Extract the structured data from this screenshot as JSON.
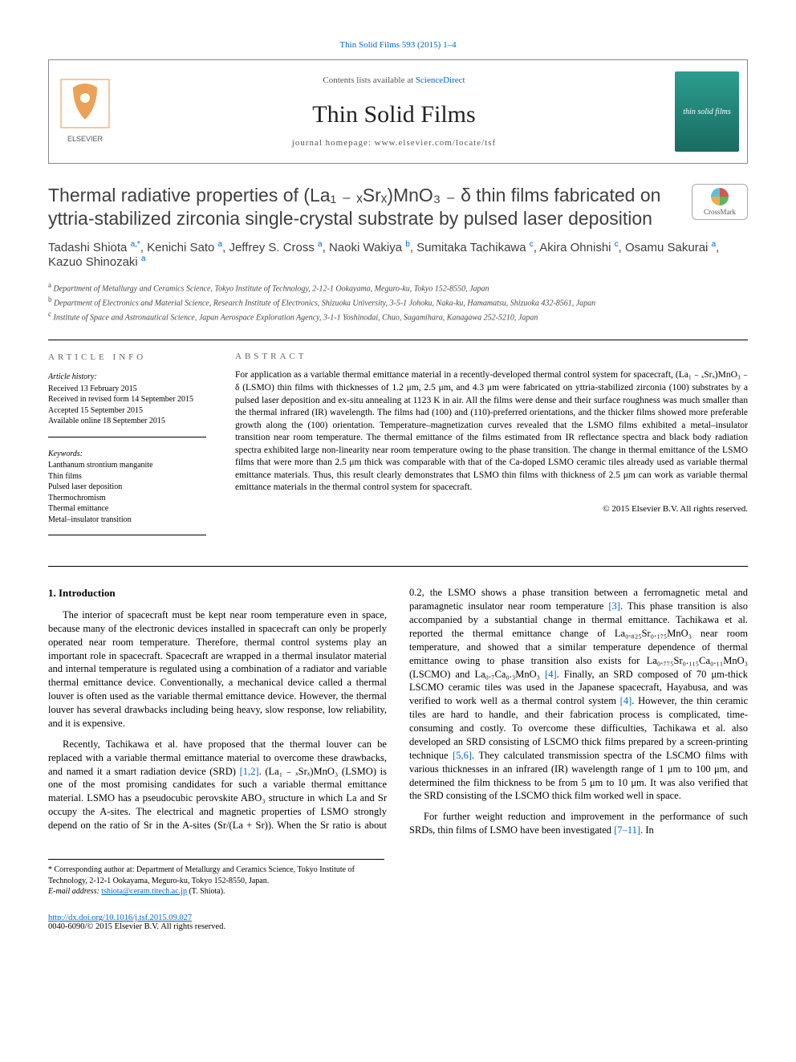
{
  "journal_ref": "Thin Solid Films 593 (2015) 1–4",
  "header": {
    "contents_prefix": "Contents lists available at ",
    "contents_link": "ScienceDirect",
    "journal_name": "Thin Solid Films",
    "homepage": "journal homepage: www.elsevier.com/locate/tsf",
    "cover_text": "thin solid films"
  },
  "title": "Thermal radiative properties of (La₁ ₋ ₓSrₓ)MnO₃ ₋ δ thin films fabricated on yttria-stabilized zirconia single-crystal substrate by pulsed laser deposition",
  "crossmark_label": "CrossMark",
  "authors_html": "Tadashi Shiota <sup>a,*</sup>, Kenichi Sato <sup>a</sup>, Jeffrey S. Cross <sup>a</sup>, Naoki Wakiya <sup>b</sup>, Sumitaka Tachikawa <sup>c</sup>, Akira Ohnishi <sup>c</sup>, Osamu Sakurai <sup>a</sup>, Kazuo Shinozaki <sup>a</sup>",
  "affiliations": [
    "a Department of Metallurgy and Ceramics Science, Tokyo Institute of Technology, 2-12-1 Ookayama, Meguro-ku, Tokyo 152-8550, Japan",
    "b Department of Electronics and Material Science, Research Institute of Electronics, Shizuoka University, 3-5-1 Johoku, Naka-ku, Hamamatsu, Shizuoka 432-8561, Japan",
    "c Institute of Space and Astronautical Science, Japan Aerospace Exploration Agency, 3-1-1 Yoshinodai, Chuo, Sagamihara, Kanagawa 252-5210, Japan"
  ],
  "article_info": {
    "heading": "ARTICLE INFO",
    "history_label": "Article history:",
    "history": [
      "Received 13 February 2015",
      "Received in revised form 14 September 2015",
      "Accepted 15 September 2015",
      "Available online 18 September 2015"
    ],
    "keywords_label": "Keywords:",
    "keywords": [
      "Lanthanum strontium manganite",
      "Thin films",
      "Pulsed laser deposition",
      "Thermochromism",
      "Thermal emittance",
      "Metal–insulator transition"
    ]
  },
  "abstract": {
    "heading": "ABSTRACT",
    "text": "For application as a variable thermal emittance material in a recently-developed thermal control system for spacecraft, (La₁ ₋ ₓSrₓ)MnO₃ ₋ δ (LSMO) thin films with thicknesses of 1.2 μm, 2.5 μm, and 4.3 μm were fabricated on yttria-stabilized zirconia (100) substrates by a pulsed laser deposition and ex-situ annealing at 1123 K in air. All the films were dense and their surface roughness was much smaller than the thermal infrared (IR) wavelength. The films had (100) and (110)-preferred orientations, and the thicker films showed more preferable growth along the (100) orientation. Temperature–magnetization curves revealed that the LSMO films exhibited a metal–insulator transition near room temperature. The thermal emittance of the films estimated from IR reflectance spectra and black body radiation spectra exhibited large non-linearity near room temperature owing to the phase transition. The change in thermal emittance of the LSMO films that were more than 2.5 μm thick was comparable with that of the Ca-doped LSMO ceramic tiles already used as variable thermal emittance materials. Thus, this result clearly demonstrates that LSMO thin films with thickness of 2.5 μm can work as variable thermal emittance materials in the thermal control system for spacecraft.",
    "copyright": "© 2015 Elsevier B.V. All rights reserved."
  },
  "body": {
    "section_heading": "1. Introduction",
    "p1": "The interior of spacecraft must be kept near room temperature even in space, because many of the electronic devices installed in spacecraft can only be properly operated near room temperature. Therefore, thermal control systems play an important role in spacecraft. Spacecraft are wrapped in a thermal insulator material and internal temperature is regulated using a combination of a radiator and variable thermal emittance device. Conventionally, a mechanical device called a thermal louver is often used as the variable thermal emittance device. However, the thermal louver has several drawbacks including being heavy, slow response, low reliability, and it is expensive.",
    "p2_a": "Recently, Tachikawa et al. have proposed that the thermal louver can be replaced with a variable thermal emittance material to overcome these drawbacks, and named it a smart radiation device (SRD) ",
    "p2_ref1": "[1,2]",
    "p2_b": ". (La₁ ₋ ₓSrₓ)MnO₃ (LSMO) is one of the most promising candidates for such a variable thermal emittance material. LSMO has a pseudocubic perovskite ABO₃ structure in which La and Sr occupy the A-sites. The electrical and magnetic properties of LSMO strongly depend on the ratio of Sr in the A-sites (Sr/(La + Sr)). When the Sr ratio is about 0.2, the LSMO shows a phase transition between a ferromagnetic metal and paramagnetic insulator near room temperature ",
    "p2_ref2": "[3]",
    "p2_c": ". This phase transition is also accompanied by a substantial change in thermal emittance. Tachikawa et al. reported the thermal emittance change of La₀.₈₂₅Sr₀.₁₇₅MnO₃ near room temperature, and showed that a similar temperature dependence of thermal emittance owing to phase transition also exists for La₀.₇₇₅Sr₀.₁₁₅Ca₀.₁₁MnO₃ (LSCMO) and La₀.₇Ca₀.₃MnO₃ ",
    "p2_ref3": "[4]",
    "p2_d": ". Finally, an SRD composed of 70 μm-thick LSCMO ceramic tiles was used in the Japanese spacecraft, Hayabusa, and was verified to work well as a thermal control system ",
    "p2_ref4": "[4]",
    "p2_e": ". However, the thin ceramic tiles are hard to handle, and their fabrication process is complicated, time-consuming and costly. To overcome these difficulties, Tachikawa et al. also developed an SRD consisting of LSCMO thick films prepared by a screen-printing technique ",
    "p2_ref5": "[5,6]",
    "p2_f": ". They calculated transmission spectra of the LSCMO films with various thicknesses in an infrared (IR) wavelength range of 1 μm to 100 μm, and determined the film thickness to be from 5 μm to 10 μm. It was also verified that the SRD consisting of the LSCMO thick film worked well in space.",
    "p3_a": "For further weight reduction and improvement in the performance of such SRDs, thin films of LSMO have been investigated ",
    "p3_ref1": "[7–11]",
    "p3_b": ". In"
  },
  "corresponding": {
    "star": "* ",
    "text": "Corresponding author at: Department of Metallurgy and Ceramics Science, Tokyo Institute of Technology, 2-12-1 Ookayama, Meguro-ku, Tokyo 152-8550, Japan.",
    "email_label": "E-mail address: ",
    "email": "tshiota@ceram.titech.ac.jp",
    "email_suffix": " (T. Shiota)."
  },
  "doi": {
    "url": "http://dx.doi.org/10.1016/j.tsf.2015.09.027",
    "copyright": "0040-6090/© 2015 Elsevier B.V. All rights reserved."
  },
  "colors": {
    "link": "#0066cc",
    "text": "#000000",
    "heading_gray": "#666666",
    "title_gray": "#3f3f3f"
  }
}
